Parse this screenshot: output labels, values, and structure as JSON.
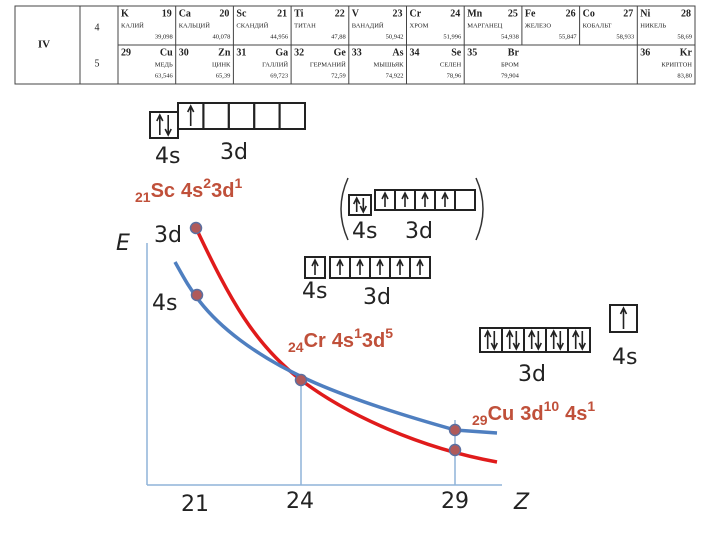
{
  "table": {
    "group": "IV",
    "rows": [
      {
        "period": "4",
        "cells": [
          {
            "symbol": "K",
            "number": "19",
            "name": "КАЛИЙ",
            "mass": "39,098"
          },
          {
            "symbol": "Ca",
            "number": "20",
            "name": "КАЛЬЦИЙ",
            "mass": "40,078"
          },
          {
            "symbol": "Sc",
            "number": "21",
            "name": "СКАНДИЙ",
            "mass": "44,956"
          },
          {
            "symbol": "Ti",
            "number": "22",
            "name": "ТИТАН",
            "mass": "47,88"
          },
          {
            "symbol": "V",
            "number": "23",
            "name": "ВАНАДИЙ",
            "mass": "50,942"
          },
          {
            "symbol": "Cr",
            "number": "24",
            "name": "ХРОМ",
            "mass": "51,996"
          },
          {
            "symbol": "Mn",
            "number": "25",
            "name": "МАРГАНЕЦ",
            "mass": "54,938"
          },
          {
            "symbol": "Fe",
            "number": "26",
            "name": "ЖЕЛЕЗО",
            "mass": "55,847"
          },
          {
            "symbol": "Co",
            "number": "27",
            "name": "КОБАЛЬТ",
            "mass": "58,933"
          },
          {
            "symbol": "Ni",
            "number": "28",
            "name": "НИКЕЛЬ",
            "mass": "58,69"
          }
        ]
      },
      {
        "period": "5",
        "cells": [
          {
            "symbol": "Cu",
            "number": "29",
            "name": "МЕДЬ",
            "mass": "63,546"
          },
          {
            "symbol": "Zn",
            "number": "30",
            "name": "ЦИНК",
            "mass": "65,39"
          },
          {
            "symbol": "Ga",
            "number": "31",
            "name": "ГАЛЛИЙ",
            "mass": "69,723"
          },
          {
            "symbol": "Ge",
            "number": "32",
            "name": "ГЕРМАНИЙ",
            "mass": "72,59"
          },
          {
            "symbol": "As",
            "number": "33",
            "name": "МЫШЬЯК",
            "mass": "74,922"
          },
          {
            "symbol": "Se",
            "number": "34",
            "name": "СЕЛЕН",
            "mass": "78,96"
          },
          {
            "symbol": "Br",
            "number": "35",
            "name": "БРОМ",
            "mass": "79,904"
          },
          {
            "symbol": "Kr",
            "number": "36",
            "name": "КРИПТОН",
            "mass": "83,80"
          }
        ]
      }
    ]
  },
  "diagram": {
    "axis_e": "E",
    "axis_z": "Z",
    "z_ticks": [
      "21",
      "24",
      "29"
    ],
    "curve_d": "3d",
    "curve_s": "4s",
    "sc": {
      "s": "4s",
      "d": "3d",
      "formula": [
        "21",
        "Sc",
        "4s",
        "2",
        "3d",
        "1"
      ]
    },
    "cr": {
      "excited_s": "4s",
      "excited_d": "3d",
      "s": "4s",
      "d": "3d",
      "formula": [
        "24",
        "Cr",
        "4s",
        "1",
        "3d",
        "5"
      ]
    },
    "cu": {
      "s": "4s",
      "d": "3d",
      "formula": [
        "29",
        "Cu",
        "3d",
        "10",
        "4s",
        "1"
      ]
    }
  }
}
